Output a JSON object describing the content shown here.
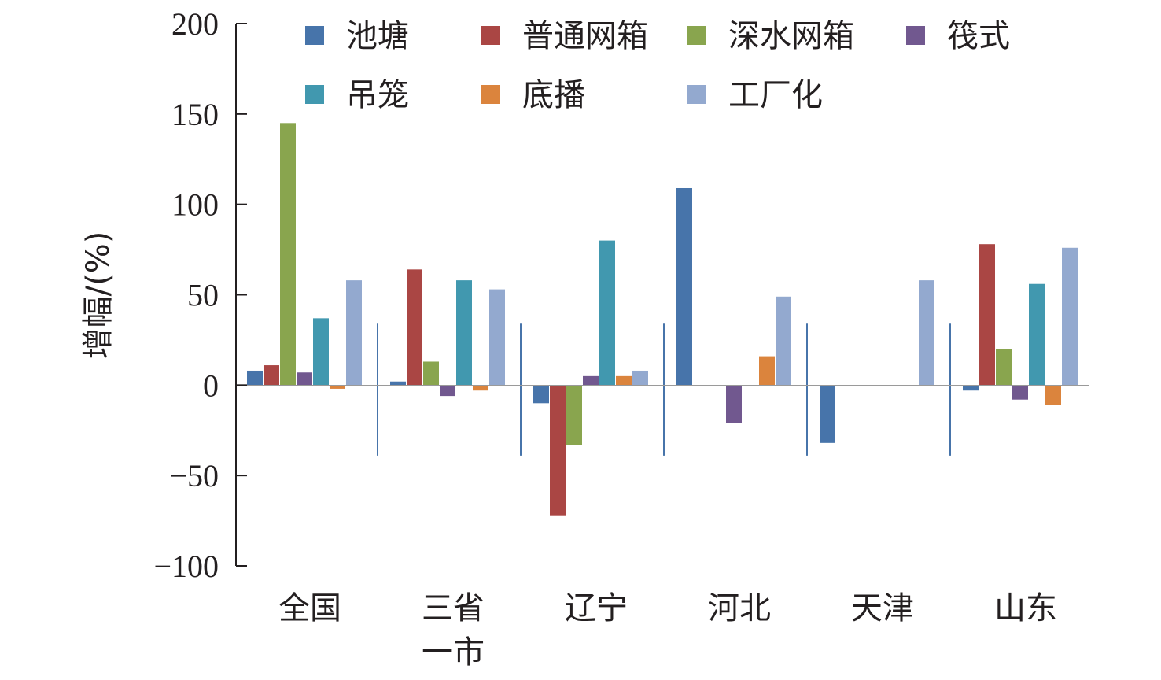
{
  "chart_data": {
    "type": "bar",
    "ylabel": "增幅/(%)",
    "ylim": [
      -100,
      200
    ],
    "yticks": [
      200,
      150,
      100,
      50,
      0,
      -50,
      -100
    ],
    "ytick_labels": [
      "200",
      "150",
      "100",
      "50",
      "0",
      "−50",
      "−100"
    ],
    "categories": [
      "全国",
      "三省一市",
      "辽宁",
      "河北",
      "天津",
      "山东"
    ],
    "category_lines": [
      [
        "全国"
      ],
      [
        "三省",
        "一市"
      ],
      [
        "辽宁"
      ],
      [
        "河北"
      ],
      [
        "天津"
      ],
      [
        "山东"
      ]
    ],
    "legend_position": "top",
    "series": [
      {
        "name": "池塘",
        "color": "#4774aa",
        "values": [
          8,
          2,
          -10,
          109,
          -32,
          -3
        ]
      },
      {
        "name": "普通网箱",
        "color": "#aa4644",
        "values": [
          11,
          64,
          -72,
          0,
          0,
          78
        ]
      },
      {
        "name": "深水网箱",
        "color": "#89a54e",
        "values": [
          145,
          13,
          -33,
          0,
          0,
          20
        ]
      },
      {
        "name": "筏式",
        "color": "#71588f",
        "values": [
          7,
          -6,
          5,
          -21,
          0,
          -8
        ]
      },
      {
        "name": "吊笼",
        "color": "#4198af",
        "values": [
          37,
          58,
          80,
          0,
          0,
          56
        ]
      },
      {
        "name": "底播",
        "color": "#db843d",
        "values": [
          -2,
          -3,
          5,
          16,
          0,
          -11
        ]
      },
      {
        "name": "工厂化",
        "color": "#93a9cf",
        "values": [
          58,
          53,
          8,
          49,
          58,
          76
        ]
      }
    ]
  }
}
